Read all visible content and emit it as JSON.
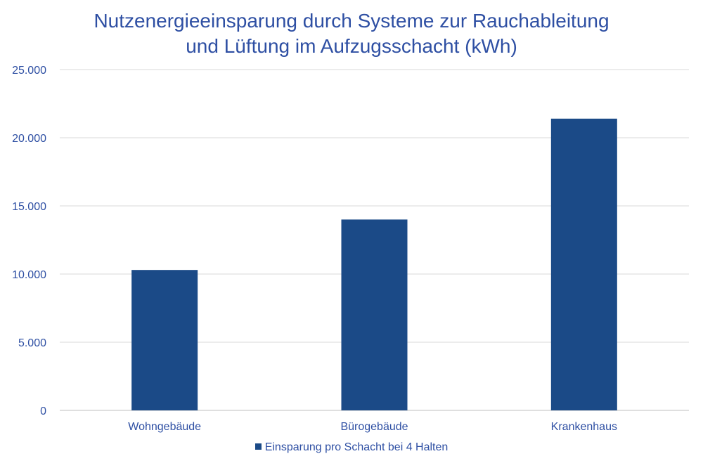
{
  "chart_data": {
    "type": "bar",
    "title_line1": "Nutzenergieeinsparung durch Systeme zur Rauchableitung",
    "title_line2": "und Lüftung im Aufzugsschacht (kWh)",
    "categories": [
      "Wohngebäude",
      "Bürogebäude",
      "Krankenhaus"
    ],
    "series": [
      {
        "name": "Einsparung pro Schacht bei 4 Halten",
        "values": [
          10300,
          14000,
          21400
        ]
      }
    ],
    "ylim": [
      0,
      25000
    ],
    "yticks": [
      0,
      5000,
      10000,
      15000,
      20000,
      25000
    ],
    "ytick_labels": [
      "0",
      "5.000",
      "10.000",
      "15.000",
      "20.000",
      "25.000"
    ],
    "grid": true,
    "legend_position": "bottom",
    "colors": {
      "bar": "#1b4a87",
      "grid": "#d9d9d9",
      "text": "#2e4fa3"
    }
  }
}
